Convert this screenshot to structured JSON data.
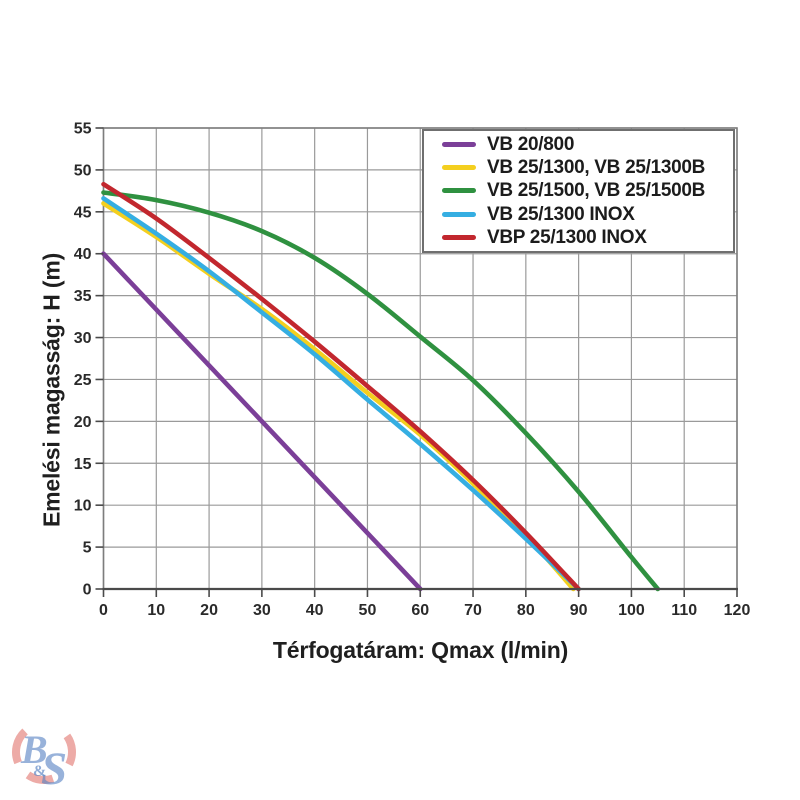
{
  "watermark": {
    "letter_b": "B",
    "ampersand": "&",
    "letter_s": "S"
  },
  "chart_data": {
    "type": "line",
    "title": "",
    "xlabel": "Térfogatáram: Qmax (l/min)",
    "ylabel": "Emelési magasság: H (m)",
    "xlim": [
      0,
      120
    ],
    "ylim": [
      0,
      55
    ],
    "x_ticks": [
      0,
      10,
      20,
      30,
      40,
      50,
      60,
      70,
      80,
      90,
      100,
      110,
      120
    ],
    "y_ticks": [
      0,
      5,
      10,
      15,
      20,
      25,
      30,
      35,
      40,
      45,
      50,
      55
    ],
    "grid": true,
    "legend_position": "top-right",
    "series": [
      {
        "name": "VB 20/800",
        "color": "#7b3f98",
        "points": [
          [
            0,
            40
          ],
          [
            60,
            0
          ]
        ]
      },
      {
        "name": "VB 25/1300, VB 25/1300B",
        "color": "#f4cf1f",
        "points": [
          [
            0,
            46.0
          ],
          [
            10,
            42.0
          ],
          [
            20,
            37.6
          ],
          [
            30,
            33.4
          ],
          [
            40,
            28.6
          ],
          [
            50,
            23.4
          ],
          [
            60,
            18.4
          ],
          [
            70,
            12.6
          ],
          [
            80,
            6.4
          ],
          [
            89,
            0
          ]
        ]
      },
      {
        "name": "VB 25/1500, VB 25/1500B",
        "color": "#2f9140",
        "points": [
          [
            0,
            47.3
          ],
          [
            10,
            46.4
          ],
          [
            20,
            44.9
          ],
          [
            30,
            42.7
          ],
          [
            40,
            39.5
          ],
          [
            50,
            35.2
          ],
          [
            60,
            30.1
          ],
          [
            70,
            24.9
          ],
          [
            80,
            18.6
          ],
          [
            90,
            11.6
          ],
          [
            100,
            3.8
          ],
          [
            105,
            0
          ]
        ]
      },
      {
        "name": "VB 25/1300 INOX",
        "color": "#35aee2",
        "points": [
          [
            0,
            46.6
          ],
          [
            10,
            42.4
          ],
          [
            20,
            37.9
          ],
          [
            30,
            33.0
          ],
          [
            40,
            28.0
          ],
          [
            50,
            22.6
          ],
          [
            60,
            17.3
          ],
          [
            70,
            11.8
          ],
          [
            80,
            6.0
          ],
          [
            90,
            0
          ]
        ]
      },
      {
        "name": "VBP 25/1300 INOX",
        "color": "#c2272e",
        "points": [
          [
            0,
            48.3
          ],
          [
            10,
            44.2
          ],
          [
            20,
            39.5
          ],
          [
            30,
            34.6
          ],
          [
            40,
            29.5
          ],
          [
            50,
            24.2
          ],
          [
            60,
            18.8
          ],
          [
            70,
            13.0
          ],
          [
            80,
            6.7
          ],
          [
            90,
            0
          ]
        ]
      }
    ],
    "style": {
      "background": "#ffffff",
      "grid_color": "#9a9a9a",
      "border_color": "#7d7d7d",
      "axis_color": "#4a4a4a",
      "text_color": "#1f1f1f",
      "watermark_blue": "#5480c2",
      "watermark_red": "#d8453b"
    }
  }
}
